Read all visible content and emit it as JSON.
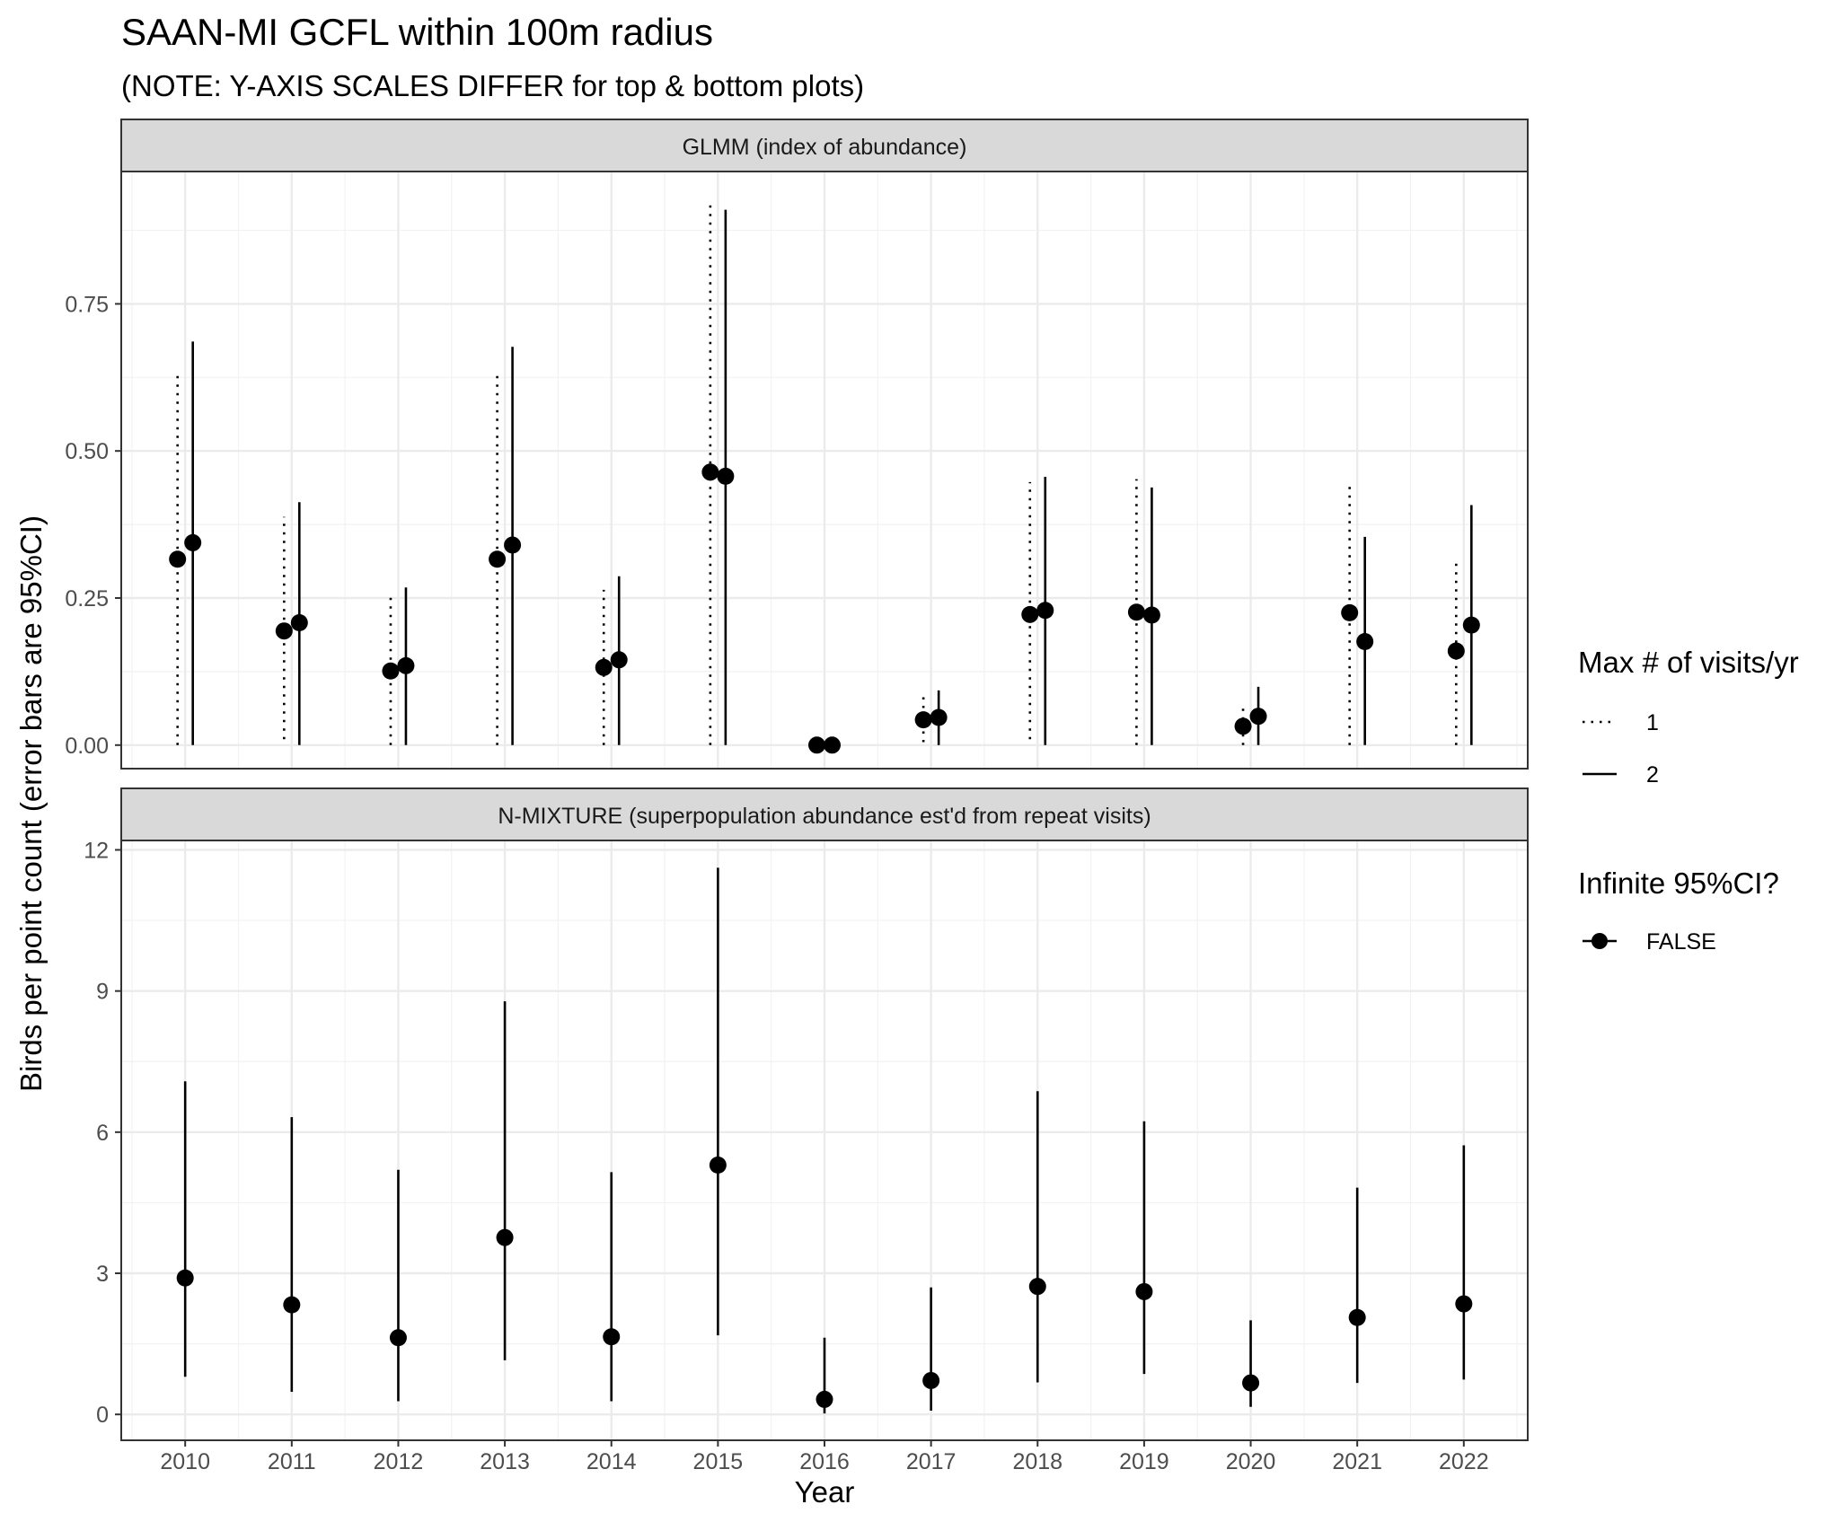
{
  "chart_data": {
    "type": "scatter",
    "title": "SAAN-MI GCFL within 100m radius",
    "subtitle": "(NOTE: Y-AXIS SCALES DIFFER for top & bottom plots)",
    "xlabel": "Year",
    "ylabel": "Birds per point count (error bars are 95%CI)",
    "categories": [
      "2010",
      "2011",
      "2012",
      "2013",
      "2014",
      "2015",
      "2016",
      "2017",
      "2018",
      "2019",
      "2020",
      "2021",
      "2022"
    ],
    "grid": true,
    "legend_position": "right",
    "legend": {
      "linetype_title": "Max # of visits/yr",
      "linetype_entries": [
        {
          "label": "1",
          "style": "dotted"
        },
        {
          "label": "2",
          "style": "solid"
        }
      ],
      "point_title": "Infinite 95%CI?",
      "point_entries": [
        {
          "label": "FALSE"
        }
      ]
    },
    "panels": [
      {
        "strip": "GLMM (index of abundance)",
        "ylim": [
          -0.04,
          0.975
        ],
        "yticks": [
          "0.00",
          "0.25",
          "0.50",
          "0.75"
        ],
        "ytick_values": [
          0,
          0.25,
          0.5,
          0.75
        ],
        "series": [
          {
            "name": "1",
            "style": "dotted",
            "estimate": [
              0.316,
              0.194,
              0.126,
              0.316,
              0.132,
              0.464,
              0.0,
              0.043,
              0.222,
              0.226,
              0.032,
              0.225,
              0.16
            ],
            "lower": [
              0.0,
              0.01,
              0.0,
              0.0,
              0.0,
              0.0,
              0.0,
              0.005,
              0.01,
              0.0,
              0.0,
              0.0,
              0.0
            ],
            "upper": [
              0.634,
              0.388,
              0.254,
              0.634,
              0.264,
              0.926,
              0.0,
              0.087,
              0.447,
              0.452,
              0.064,
              0.449,
              0.319
            ]
          },
          {
            "name": "2",
            "style": "solid",
            "estimate": [
              0.344,
              0.208,
              0.135,
              0.34,
              0.145,
              0.457,
              0.0,
              0.047,
              0.229,
              0.221,
              0.049,
              0.176,
              0.204
            ],
            "lower": [
              0.0,
              0.0,
              0.0,
              0.0,
              0.0,
              0.0,
              0.0,
              0.0,
              0.0,
              0.0,
              0.0,
              0.0,
              0.0
            ],
            "upper": [
              0.686,
              0.413,
              0.268,
              0.677,
              0.287,
              0.91,
              0.0,
              0.093,
              0.456,
              0.438,
              0.099,
              0.354,
              0.408
            ]
          }
        ]
      },
      {
        "strip": "N-MIXTURE (superpopulation abundance est'd from repeat visits)",
        "ylim": [
          -0.55,
          12.2
        ],
        "yticks": [
          "0",
          "3",
          "6",
          "9",
          "12"
        ],
        "ytick_values": [
          0,
          3,
          6,
          9,
          12
        ],
        "series": [
          {
            "name": "2",
            "style": "solid",
            "estimate": [
              2.9,
              2.33,
              1.63,
              3.76,
              1.65,
              5.3,
              0.32,
              0.72,
              2.72,
              2.61,
              0.67,
              2.06,
              2.35
            ],
            "lower": [
              0.8,
              0.48,
              0.28,
              1.15,
              0.28,
              1.68,
              0.02,
              0.08,
              0.68,
              0.86,
              0.16,
              0.67,
              0.74
            ],
            "upper": [
              7.08,
              6.32,
              5.2,
              8.78,
              5.15,
              11.62,
              1.63,
              2.7,
              6.87,
              6.23,
              2.0,
              4.82,
              5.72
            ]
          }
        ]
      }
    ]
  }
}
